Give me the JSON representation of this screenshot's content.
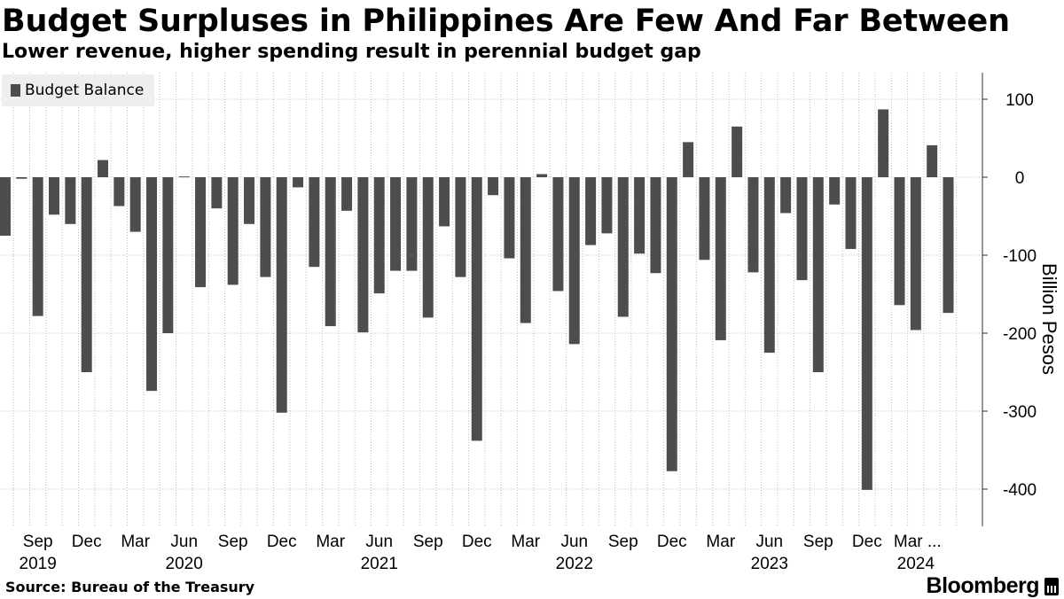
{
  "title": "Budget Surpluses in Philippines Are Few And Far Between",
  "subtitle": "Lower revenue, higher spending result in perennial budget gap",
  "source": "Source: Bureau of the Treasury",
  "brand": "Bloomberg",
  "colors": {
    "bar": "#4d4d4d",
    "grid": "#bdbdbd",
    "axis": "#333333",
    "legend_bg": "#eeeeee"
  },
  "chart_data": {
    "type": "bar",
    "legend": [
      "Budget Balance"
    ],
    "legend_position": "top-left",
    "ylabel": "Billion Pesos",
    "ylim": [
      -450,
      135
    ],
    "yticks": [
      100,
      0,
      -100,
      -200,
      -300,
      -400
    ],
    "y_axis_position": "right",
    "grid": true,
    "categories": [
      "2019-07",
      "2019-08",
      "2019-09",
      "2019-10",
      "2019-11",
      "2019-12",
      "2020-01",
      "2020-02",
      "2020-03",
      "2020-04",
      "2020-05",
      "2020-06",
      "2020-07",
      "2020-08",
      "2020-09",
      "2020-10",
      "2020-11",
      "2020-12",
      "2021-01",
      "2021-02",
      "2021-03",
      "2021-04",
      "2021-05",
      "2021-06",
      "2021-07",
      "2021-08",
      "2021-09",
      "2021-10",
      "2021-11",
      "2021-12",
      "2022-01",
      "2022-02",
      "2022-03",
      "2022-04",
      "2022-05",
      "2022-06",
      "2022-07",
      "2022-08",
      "2022-09",
      "2022-10",
      "2022-11",
      "2022-12",
      "2023-01",
      "2023-02",
      "2023-03",
      "2023-04",
      "2023-05",
      "2023-06",
      "2023-07",
      "2023-08",
      "2023-09",
      "2023-10",
      "2023-11",
      "2023-12",
      "2024-01",
      "2024-02",
      "2024-03",
      "2024-04",
      "2024-05"
    ],
    "series": [
      {
        "name": "Budget Balance",
        "values": [
          -75,
          -2,
          -178,
          -48,
          -60,
          -250,
          22,
          -37,
          -70,
          -274,
          -200,
          1,
          -141,
          -40,
          -138,
          -60,
          -128,
          -302,
          -13,
          -115,
          -191,
          -43,
          -199,
          -149,
          -120,
          -120,
          -180,
          -63,
          -128,
          -338,
          -23,
          -104,
          -187,
          4,
          -146,
          -214,
          -87,
          -72,
          -179,
          -98,
          -123,
          -377,
          45,
          -106,
          -209,
          65,
          -122,
          -225,
          -46,
          -132,
          -250,
          -35,
          -92,
          -401,
          87,
          -164,
          -196,
          41,
          -174
        ]
      }
    ],
    "x_tick_labels": [
      {
        "index": 2,
        "month": "Sep",
        "year": "2019"
      },
      {
        "index": 5,
        "month": "Dec",
        "year": ""
      },
      {
        "index": 8,
        "month": "Mar",
        "year": ""
      },
      {
        "index": 11,
        "month": "Jun",
        "year": "2020"
      },
      {
        "index": 14,
        "month": "Sep",
        "year": ""
      },
      {
        "index": 17,
        "month": "Dec",
        "year": ""
      },
      {
        "index": 20,
        "month": "Mar",
        "year": ""
      },
      {
        "index": 23,
        "month": "Jun",
        "year": "2021"
      },
      {
        "index": 26,
        "month": "Sep",
        "year": ""
      },
      {
        "index": 29,
        "month": "Dec",
        "year": ""
      },
      {
        "index": 32,
        "month": "Mar",
        "year": ""
      },
      {
        "index": 35,
        "month": "Jun",
        "year": "2022"
      },
      {
        "index": 38,
        "month": "Sep",
        "year": ""
      },
      {
        "index": 41,
        "month": "Dec",
        "year": ""
      },
      {
        "index": 44,
        "month": "Mar",
        "year": ""
      },
      {
        "index": 47,
        "month": "Jun",
        "year": "2023"
      },
      {
        "index": 50,
        "month": "Sep",
        "year": ""
      },
      {
        "index": 53,
        "month": "Dec",
        "year": ""
      },
      {
        "index": 56,
        "month": "Mar ...",
        "year": "2024"
      }
    ]
  }
}
